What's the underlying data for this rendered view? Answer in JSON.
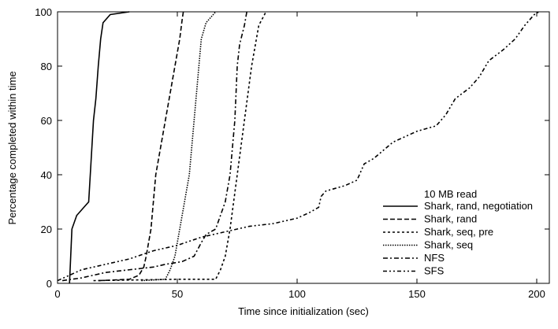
{
  "chart_data": {
    "type": "line",
    "title": "",
    "xlabel": "Time since initialization (sec)",
    "ylabel": "Percentage completed within time",
    "xlim": [
      0,
      205
    ],
    "ylim": [
      0,
      100
    ],
    "xticks": [
      0,
      50,
      100,
      150,
      200
    ],
    "yticks": [
      0,
      20,
      40,
      60,
      80,
      100
    ],
    "grid": false,
    "legend_title": "10 MB read",
    "legend_position": "bottom-right",
    "series": [
      {
        "name": "Shark, rand, negotiation",
        "dash": "solid",
        "points": [
          [
            5,
            0
          ],
          [
            5.5,
            10
          ],
          [
            6,
            20
          ],
          [
            8,
            25
          ],
          [
            11,
            28
          ],
          [
            13,
            30
          ],
          [
            14,
            45
          ],
          [
            15,
            60
          ],
          [
            16,
            68
          ],
          [
            17,
            80
          ],
          [
            18,
            90
          ],
          [
            19,
            96
          ],
          [
            22,
            99
          ],
          [
            30,
            100
          ]
        ]
      },
      {
        "name": "Shark, rand",
        "dash": "dashed",
        "points": [
          [
            17,
            1
          ],
          [
            30,
            1.5
          ],
          [
            34,
            3
          ],
          [
            36,
            6
          ],
          [
            37,
            10
          ],
          [
            39,
            20
          ],
          [
            40,
            30
          ],
          [
            41,
            40
          ],
          [
            43,
            50
          ],
          [
            45,
            60
          ],
          [
            47,
            70
          ],
          [
            49,
            80
          ],
          [
            51,
            90
          ],
          [
            52,
            97
          ],
          [
            52.5,
            100
          ]
        ]
      },
      {
        "name": "Shark, seq, pre",
        "dash": "dotted-coarse",
        "points": [
          [
            15,
            1
          ],
          [
            50,
            1.5
          ],
          [
            66,
            1.5
          ],
          [
            68,
            5
          ],
          [
            70,
            10
          ],
          [
            72,
            20
          ],
          [
            75,
            40
          ],
          [
            78,
            60
          ],
          [
            81,
            80
          ],
          [
            84,
            95
          ],
          [
            87,
            100
          ]
        ]
      },
      {
        "name": "Shark, seq",
        "dash": "dotted-fine",
        "points": [
          [
            35,
            1
          ],
          [
            45,
            1.5
          ],
          [
            47,
            5
          ],
          [
            49,
            10
          ],
          [
            51,
            20
          ],
          [
            53,
            30
          ],
          [
            55,
            40
          ],
          [
            56,
            50
          ],
          [
            57,
            60
          ],
          [
            58,
            70
          ],
          [
            59,
            80
          ],
          [
            60,
            90
          ],
          [
            62,
            96
          ],
          [
            66,
            100
          ]
        ]
      },
      {
        "name": "NFS",
        "dash": "dash-dot",
        "points": [
          [
            2,
            1
          ],
          [
            10,
            2
          ],
          [
            20,
            4
          ],
          [
            30,
            5
          ],
          [
            40,
            6
          ],
          [
            45,
            7
          ],
          [
            52,
            8
          ],
          [
            57,
            10
          ],
          [
            60,
            15
          ],
          [
            62,
            18
          ],
          [
            66,
            20
          ],
          [
            68,
            25
          ],
          [
            70,
            30
          ],
          [
            72,
            40
          ],
          [
            73,
            50
          ],
          [
            74,
            60
          ],
          [
            75,
            80
          ],
          [
            76,
            88
          ],
          [
            78,
            95
          ],
          [
            79,
            100
          ]
        ]
      },
      {
        "name": "SFS",
        "dash": "dash-dot-dot",
        "points": [
          [
            0,
            1
          ],
          [
            5,
            3
          ],
          [
            10,
            5
          ],
          [
            20,
            7
          ],
          [
            30,
            9
          ],
          [
            40,
            12
          ],
          [
            50,
            14
          ],
          [
            60,
            17
          ],
          [
            70,
            19
          ],
          [
            80,
            21
          ],
          [
            90,
            22
          ],
          [
            100,
            24
          ],
          [
            105,
            26
          ],
          [
            109,
            28
          ],
          [
            110,
            32
          ],
          [
            112,
            34
          ],
          [
            120,
            36
          ],
          [
            125,
            38
          ],
          [
            128,
            44
          ],
          [
            132,
            46
          ],
          [
            140,
            52
          ],
          [
            150,
            56
          ],
          [
            158,
            58
          ],
          [
            162,
            62
          ],
          [
            166,
            68
          ],
          [
            172,
            72
          ],
          [
            176,
            76
          ],
          [
            180,
            82
          ],
          [
            186,
            86
          ],
          [
            191,
            90
          ],
          [
            195,
            95
          ],
          [
            199,
            99
          ],
          [
            201,
            100
          ]
        ]
      }
    ]
  }
}
